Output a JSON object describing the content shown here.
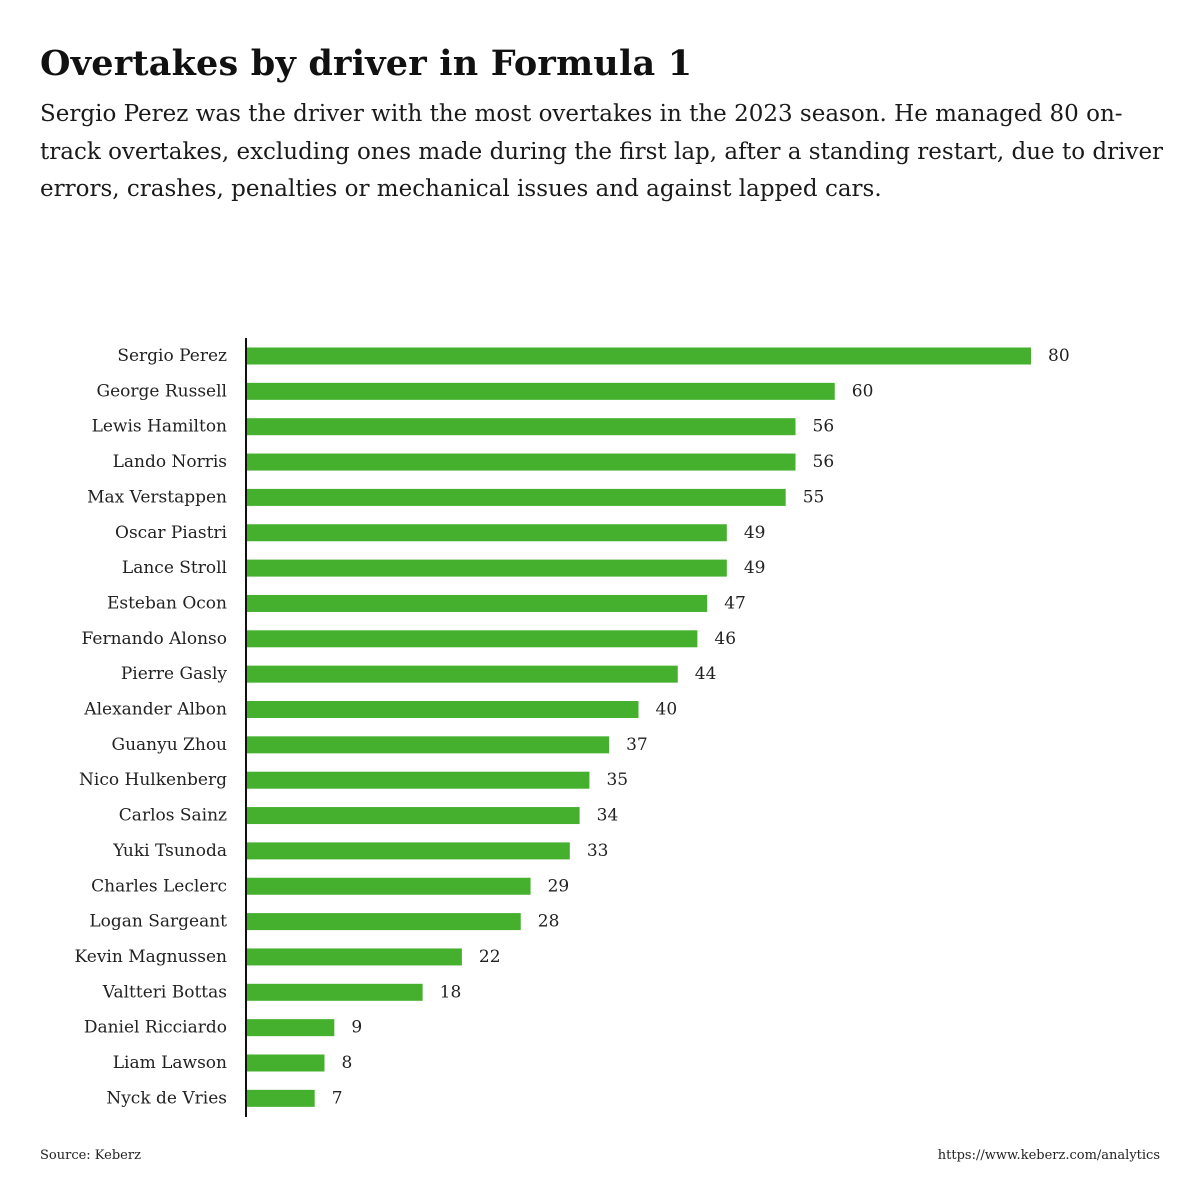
{
  "title": "Overtakes by driver in Formula 1",
  "subtitle": "Sergio Perez was the driver with the most overtakes in the 2023 season. He managed 80 on-track overtakes, excluding ones made during the first lap, after a standing restart, due to driver errors, crashes, penalties or mechanical issues and against lapped cars.",
  "source": "Source: Keberz",
  "url": "https://www.keberz.com/analytics",
  "colors": {
    "bar": "#44b02d",
    "axis": "#111111"
  },
  "chart_data": {
    "type": "bar",
    "orientation": "horizontal",
    "title": "Overtakes by driver in Formula 1",
    "xlabel": "",
    "ylabel": "",
    "xlim": [
      0,
      80
    ],
    "grid": false,
    "legend": "none",
    "categories": [
      "Sergio Perez",
      "George Russell",
      "Lewis Hamilton",
      "Lando Norris",
      "Max Verstappen",
      "Oscar Piastri",
      "Lance Stroll",
      "Esteban Ocon",
      "Fernando Alonso",
      "Pierre Gasly",
      "Alexander Albon",
      "Guanyu Zhou",
      "Nico Hulkenberg",
      "Carlos Sainz",
      "Yuki Tsunoda",
      "Charles Leclerc",
      "Logan Sargeant",
      "Kevin Magnussen",
      "Valtteri Bottas",
      "Daniel Ricciardo",
      "Liam Lawson",
      "Nyck de Vries"
    ],
    "values": [
      80,
      60,
      56,
      56,
      55,
      49,
      49,
      47,
      46,
      44,
      40,
      37,
      35,
      34,
      33,
      29,
      28,
      22,
      18,
      9,
      8,
      7
    ]
  }
}
